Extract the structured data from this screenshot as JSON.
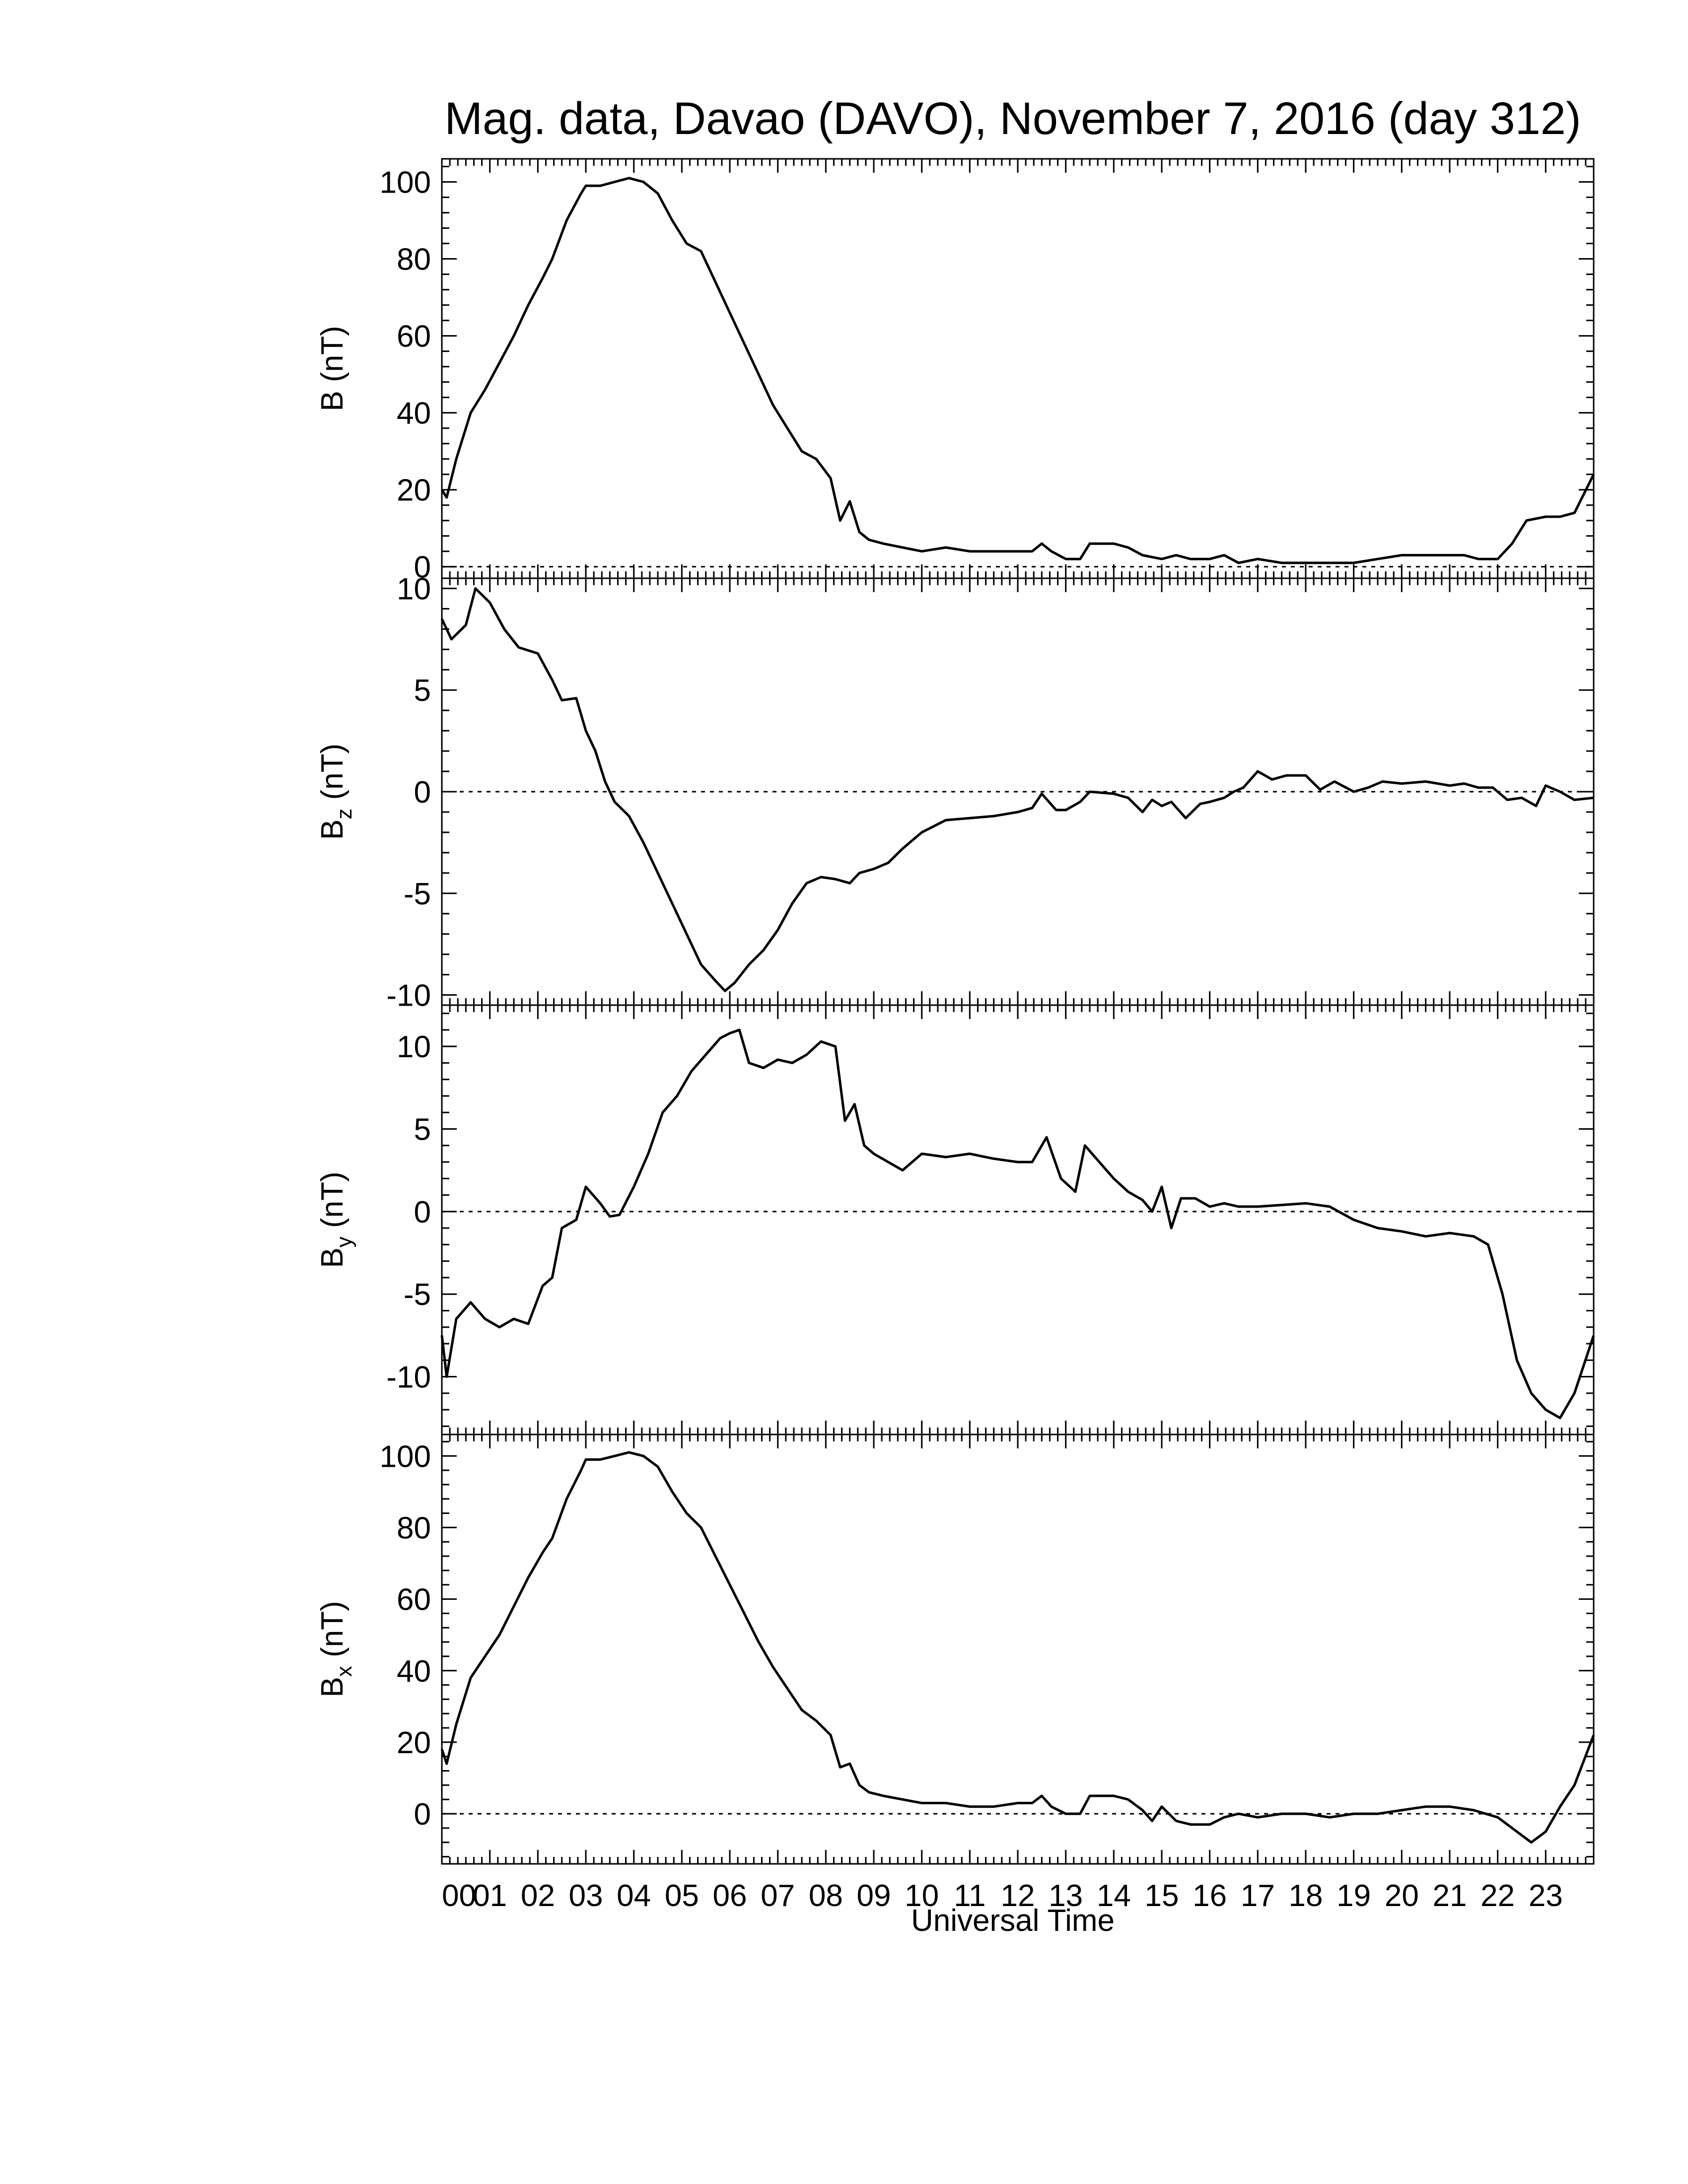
{
  "title": "Mag. data, Davao (DAVO), November 7, 2016 (day 312)",
  "xlabel": "Universal Time",
  "x_tick_labels": [
    "00",
    "01",
    "02",
    "03",
    "04",
    "05",
    "06",
    "07",
    "08",
    "09",
    "10",
    "11",
    "12",
    "13",
    "14",
    "15",
    "16",
    "17",
    "18",
    "19",
    "20",
    "21",
    "22",
    "23"
  ],
  "chart_data": [
    {
      "type": "line",
      "ylabel_base": "B",
      "ylabel_sub": "",
      "ylabel_unit": " (nT)",
      "xlim": [
        0,
        24
      ],
      "ylim": [
        -3,
        106
      ],
      "yticks": [
        0,
        20,
        40,
        60,
        80,
        100
      ],
      "zero_line": true,
      "x": [
        0.0,
        0.1,
        0.3,
        0.6,
        0.9,
        1.2,
        1.5,
        1.8,
        2.1,
        2.3,
        2.6,
        2.9,
        3.0,
        3.3,
        3.6,
        3.9,
        4.2,
        4.5,
        4.8,
        5.1,
        5.4,
        5.7,
        6.0,
        6.3,
        6.6,
        6.9,
        7.2,
        7.5,
        7.8,
        8.1,
        8.3,
        8.5,
        8.7,
        8.9,
        9.2,
        9.6,
        10.0,
        10.5,
        11.0,
        11.5,
        12.0,
        12.3,
        12.5,
        12.7,
        13.0,
        13.3,
        13.5,
        14.0,
        14.3,
        14.6,
        15.0,
        15.3,
        15.6,
        16.0,
        16.3,
        16.6,
        17.0,
        17.5,
        18.0,
        18.5,
        19.0,
        19.5,
        20.0,
        20.5,
        21.0,
        21.3,
        21.6,
        22.0,
        22.3,
        22.6,
        23.0,
        23.3,
        23.6,
        24.0
      ],
      "y": [
        20,
        18,
        28,
        40,
        46,
        53,
        60,
        68,
        75,
        80,
        90,
        97,
        99,
        99,
        100,
        101,
        100,
        97,
        90,
        84,
        82,
        74,
        66,
        58,
        50,
        42,
        36,
        30,
        28,
        23,
        12,
        17,
        9,
        7,
        6,
        5,
        4,
        5,
        4,
        4,
        4,
        4,
        6,
        4,
        2,
        2,
        6,
        6,
        5,
        3,
        2,
        3,
        2,
        2,
        3,
        1,
        2,
        1,
        1,
        1,
        1,
        2,
        3,
        3,
        3,
        3,
        2,
        2,
        6,
        12,
        13,
        13,
        14,
        24
      ]
    },
    {
      "type": "line",
      "ylabel_base": "B",
      "ylabel_sub": "z",
      "ylabel_unit": " (nT)",
      "xlim": [
        0,
        24
      ],
      "ylim": [
        -10.5,
        10.5
      ],
      "yticks": [
        -10,
        -5,
        0,
        5,
        10
      ],
      "zero_line": true,
      "x": [
        0.0,
        0.2,
        0.5,
        0.7,
        1.0,
        1.3,
        1.6,
        2.0,
        2.3,
        2.5,
        2.8,
        3.0,
        3.2,
        3.4,
        3.6,
        3.9,
        4.2,
        4.5,
        4.8,
        5.1,
        5.4,
        5.7,
        5.9,
        6.1,
        6.4,
        6.7,
        7.0,
        7.3,
        7.6,
        7.9,
        8.2,
        8.5,
        8.7,
        9.0,
        9.3,
        9.6,
        10.0,
        10.5,
        11.0,
        11.5,
        12.0,
        12.3,
        12.5,
        12.8,
        13.0,
        13.3,
        13.5,
        14.0,
        14.3,
        14.6,
        14.8,
        15.0,
        15.2,
        15.5,
        15.8,
        16.0,
        16.3,
        16.5,
        16.7,
        17.0,
        17.3,
        17.6,
        18.0,
        18.3,
        18.6,
        19.0,
        19.3,
        19.6,
        20.0,
        20.5,
        21.0,
        21.3,
        21.6,
        21.9,
        22.2,
        22.5,
        22.8,
        23.0,
        23.3,
        23.6,
        24.0
      ],
      "y": [
        8.5,
        7.5,
        8.2,
        10.0,
        9.3,
        8.0,
        7.1,
        6.8,
        5.5,
        4.5,
        4.6,
        3.0,
        2.0,
        0.5,
        -0.5,
        -1.2,
        -2.5,
        -4.0,
        -5.5,
        -7.0,
        -8.5,
        -9.3,
        -9.8,
        -9.4,
        -8.5,
        -7.8,
        -6.8,
        -5.5,
        -4.5,
        -4.2,
        -4.3,
        -4.5,
        -4.0,
        -3.8,
        -3.5,
        -2.8,
        -2.0,
        -1.4,
        -1.3,
        -1.2,
        -1.0,
        -0.8,
        -0.1,
        -0.9,
        -0.9,
        -0.5,
        0.0,
        -0.1,
        -0.3,
        -1.0,
        -0.4,
        -0.7,
        -0.5,
        -1.3,
        -0.6,
        -0.5,
        -0.3,
        0.0,
        0.2,
        1.0,
        0.6,
        0.8,
        0.8,
        0.1,
        0.5,
        0.0,
        0.2,
        0.5,
        0.4,
        0.5,
        0.3,
        0.4,
        0.2,
        0.2,
        -0.4,
        -0.3,
        -0.7,
        0.3,
        0.0,
        -0.4,
        -0.3
      ]
    },
    {
      "type": "line",
      "ylabel_base": "B",
      "ylabel_sub": "y",
      "ylabel_unit": " (nT)",
      "xlim": [
        0,
        24
      ],
      "ylim": [
        -13.5,
        12.5
      ],
      "yticks": [
        -10,
        -5,
        0,
        5,
        10
      ],
      "zero_line": true,
      "x": [
        0.0,
        0.1,
        0.3,
        0.6,
        0.9,
        1.2,
        1.5,
        1.8,
        2.1,
        2.3,
        2.5,
        2.8,
        3.0,
        3.3,
        3.5,
        3.7,
        4.0,
        4.3,
        4.6,
        4.9,
        5.2,
        5.5,
        5.8,
        6.0,
        6.2,
        6.4,
        6.7,
        7.0,
        7.3,
        7.6,
        7.9,
        8.2,
        8.4,
        8.6,
        8.8,
        9.0,
        9.3,
        9.6,
        10.0,
        10.5,
        11.0,
        11.5,
        12.0,
        12.3,
        12.6,
        12.9,
        13.2,
        13.4,
        13.7,
        14.0,
        14.3,
        14.6,
        14.8,
        15.0,
        15.2,
        15.4,
        15.7,
        16.0,
        16.3,
        16.6,
        17.0,
        17.5,
        18.0,
        18.5,
        19.0,
        19.5,
        20.0,
        20.5,
        21.0,
        21.5,
        21.8,
        22.1,
        22.4,
        22.7,
        23.0,
        23.3,
        23.6,
        24.0
      ],
      "y": [
        -7.5,
        -10.0,
        -6.5,
        -5.5,
        -6.5,
        -7.0,
        -6.5,
        -6.8,
        -4.5,
        -4.0,
        -1.0,
        -0.5,
        1.5,
        0.5,
        -0.3,
        -0.2,
        1.5,
        3.5,
        6.0,
        7.0,
        8.5,
        9.5,
        10.5,
        10.8,
        11.0,
        9.0,
        8.7,
        9.2,
        9.0,
        9.5,
        10.3,
        10.0,
        5.5,
        6.5,
        4.0,
        3.5,
        3.0,
        2.5,
        3.5,
        3.3,
        3.5,
        3.2,
        3.0,
        3.0,
        4.5,
        2.0,
        1.2,
        4.0,
        3.0,
        2.0,
        1.2,
        0.7,
        0.0,
        1.5,
        -1.0,
        0.8,
        0.8,
        0.3,
        0.5,
        0.3,
        0.3,
        0.4,
        0.5,
        0.3,
        -0.5,
        -1.0,
        -1.2,
        -1.5,
        -1.3,
        -1.5,
        -2.0,
        -5.0,
        -9.0,
        -11.0,
        -12.0,
        -12.5,
        -11.0,
        -7.5
      ]
    },
    {
      "type": "line",
      "ylabel_base": "B",
      "ylabel_sub": "x",
      "ylabel_unit": " (nT)",
      "xlim": [
        0,
        24
      ],
      "ylim": [
        -14,
        106
      ],
      "yticks": [
        0,
        20,
        40,
        60,
        80,
        100
      ],
      "zero_line": true,
      "x": [
        0.0,
        0.1,
        0.3,
        0.6,
        0.9,
        1.2,
        1.5,
        1.8,
        2.1,
        2.3,
        2.6,
        2.9,
        3.0,
        3.3,
        3.6,
        3.9,
        4.2,
        4.5,
        4.8,
        5.1,
        5.4,
        5.7,
        6.0,
        6.3,
        6.6,
        6.9,
        7.2,
        7.5,
        7.8,
        8.1,
        8.3,
        8.5,
        8.7,
        8.9,
        9.2,
        9.6,
        10.0,
        10.5,
        11.0,
        11.5,
        12.0,
        12.3,
        12.5,
        12.7,
        13.0,
        13.3,
        13.5,
        14.0,
        14.3,
        14.6,
        14.8,
        15.0,
        15.3,
        15.6,
        16.0,
        16.3,
        16.6,
        17.0,
        17.5,
        18.0,
        18.5,
        19.0,
        19.5,
        20.0,
        20.5,
        21.0,
        21.5,
        22.0,
        22.4,
        22.7,
        23.0,
        23.3,
        23.6,
        24.0
      ],
      "y": [
        18,
        14,
        25,
        38,
        44,
        50,
        58,
        66,
        73,
        77,
        88,
        96,
        99,
        99,
        100,
        101,
        100,
        97,
        90,
        84,
        80,
        72,
        64,
        56,
        48,
        41,
        35,
        29,
        26,
        22,
        13,
        14,
        8,
        6,
        5,
        4,
        3,
        3,
        2,
        2,
        3,
        3,
        5,
        2,
        0,
        0,
        5,
        5,
        4,
        1,
        -2,
        2,
        -2,
        -3,
        -3,
        -1,
        0,
        -1,
        0,
        0,
        -1,
        0,
        0,
        1,
        2,
        2,
        1,
        -1,
        -5,
        -8,
        -5,
        2,
        8,
        22
      ]
    }
  ]
}
